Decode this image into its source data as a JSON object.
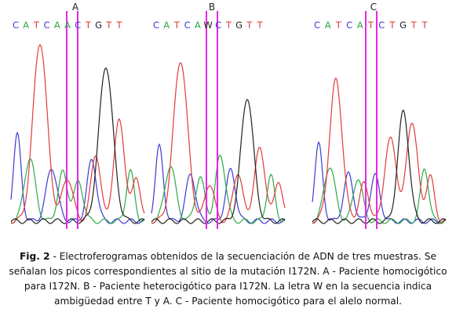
{
  "panels": [
    {
      "label": "A",
      "sequence": [
        "C",
        "A",
        "T",
        "C",
        "A",
        "A",
        "C",
        "T",
        "G",
        "T",
        "T"
      ]
    },
    {
      "label": "B",
      "sequence": [
        "C",
        "A",
        "T",
        "C",
        "A",
        "W",
        "C",
        "T",
        "G",
        "T",
        "T"
      ]
    },
    {
      "label": "C",
      "sequence": [
        "C",
        "A",
        "T",
        "C",
        "A",
        "T",
        "C",
        "T",
        "G",
        "T",
        "T"
      ]
    }
  ],
  "colors": {
    "C": "#3b3bd6",
    "A": "#2ea84a",
    "T": "#e23b3b",
    "G": "#222222",
    "W": "#222222",
    "marker": "#e628e6"
  },
  "caption": {
    "label": "Fig. 2",
    "text": " - Electroferogramas obtenidos de la secuenciación de ADN de tres muestras. Se señalan los picos correspondientes al sitio de la mutación I172N. A - Paciente homocigótico para I172N. B - Paciente heterocigótico para I172N. La letra W en la secuencia indica ambigüedad entre T y A. C - Paciente homocigótico para el alelo normal."
  }
}
